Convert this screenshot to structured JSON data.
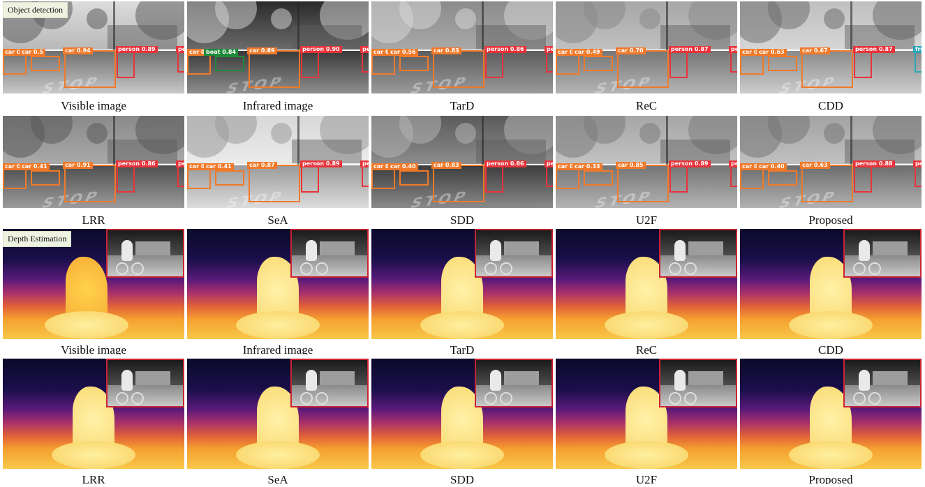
{
  "sections": {
    "detection_tag": "Object detection",
    "depth_tag": "Depth Estimation"
  },
  "detection_rows": [
    {
      "cells": [
        {
          "caption": "Visible image",
          "style": "visible",
          "labels": [
            {
              "cls": "car",
              "text": "car 0.65"
            },
            {
              "cls": "car",
              "text": "car 0.5"
            },
            {
              "cls": "car",
              "text": "car 0.94"
            },
            {
              "cls": "person",
              "text": "person 0.89"
            },
            {
              "cls": "person",
              "text": "pe"
            }
          ]
        },
        {
          "caption": "Infrared image",
          "style": "infrared",
          "labels": [
            {
              "cls": "car",
              "text": "car 0.41"
            },
            {
              "cls": "boat",
              "text": "boat 0.84"
            },
            {
              "cls": "car",
              "text": "car 0.89"
            },
            {
              "cls": "person",
              "text": "person 0.90"
            },
            {
              "cls": "person",
              "text": "pe"
            }
          ]
        },
        {
          "caption": "TarD",
          "style": "tard",
          "labels": [
            {
              "cls": "car",
              "text": "car 0.41"
            },
            {
              "cls": "car",
              "text": "car 0.56"
            },
            {
              "cls": "car",
              "text": "car 0.83"
            },
            {
              "cls": "person",
              "text": "person 0.86"
            },
            {
              "cls": "person",
              "text": "pe"
            }
          ]
        },
        {
          "caption": "ReC",
          "style": "rec",
          "labels": [
            {
              "cls": "car",
              "text": "car 0.55"
            },
            {
              "cls": "car",
              "text": "car 0.49"
            },
            {
              "cls": "car",
              "text": "car 0.70"
            },
            {
              "cls": "person",
              "text": "person 0.87"
            },
            {
              "cls": "person",
              "text": "pe"
            }
          ]
        },
        {
          "caption": "CDD",
          "style": "cdd",
          "labels": [
            {
              "cls": "car",
              "text": "car 0.58"
            },
            {
              "cls": "car",
              "text": "car 0.63"
            },
            {
              "cls": "car",
              "text": "car 0.67"
            },
            {
              "cls": "person",
              "text": "person 0.87"
            },
            {
              "cls": "fire",
              "text": "front 0.33"
            }
          ]
        }
      ]
    },
    {
      "cells": [
        {
          "caption": "LRR",
          "style": "lrr",
          "labels": [
            {
              "cls": "car",
              "text": "car 0.59"
            },
            {
              "cls": "car",
              "text": "car 0.41"
            },
            {
              "cls": "car",
              "text": "car 0.91"
            },
            {
              "cls": "person",
              "text": "person 0.86"
            },
            {
              "cls": "person",
              "text": "pe"
            }
          ]
        },
        {
          "caption": "SeA",
          "style": "sea",
          "labels": [
            {
              "cls": "car",
              "text": "car 0.31"
            },
            {
              "cls": "car",
              "text": "car 0.41"
            },
            {
              "cls": "car",
              "text": "car 0.87"
            },
            {
              "cls": "person",
              "text": "person 0.89"
            },
            {
              "cls": "person",
              "text": "pe"
            }
          ]
        },
        {
          "caption": "SDD",
          "style": "sdd",
          "labels": [
            {
              "cls": "car",
              "text": "car 0.64"
            },
            {
              "cls": "car",
              "text": "car 0.40"
            },
            {
              "cls": "car",
              "text": "car 0.83"
            },
            {
              "cls": "person",
              "text": "person 0.86"
            },
            {
              "cls": "person",
              "text": "pe"
            }
          ]
        },
        {
          "caption": "U2F",
          "style": "u2f",
          "labels": [
            {
              "cls": "car",
              "text": "car 0.50"
            },
            {
              "cls": "car",
              "text": "car 0.33"
            },
            {
              "cls": "car",
              "text": "car 0.85"
            },
            {
              "cls": "person",
              "text": "person 0.89"
            },
            {
              "cls": "person",
              "text": "pe"
            }
          ]
        },
        {
          "caption": "Proposed",
          "style": "proposed",
          "labels": [
            {
              "cls": "car",
              "text": "car 0.47"
            },
            {
              "cls": "car",
              "text": "car 0.40"
            },
            {
              "cls": "car",
              "text": "car 0.63"
            },
            {
              "cls": "person",
              "text": "person 0.88"
            },
            {
              "cls": "person",
              "text": "pe"
            }
          ]
        }
      ]
    }
  ],
  "depth_rows": [
    {
      "captions": [
        "Visible image",
        "Infrared image",
        "TarD",
        "ReC",
        "CDD"
      ]
    },
    {
      "captions": [
        "LRR",
        "SeA",
        "SDD",
        "U2F",
        "Proposed"
      ]
    }
  ]
}
